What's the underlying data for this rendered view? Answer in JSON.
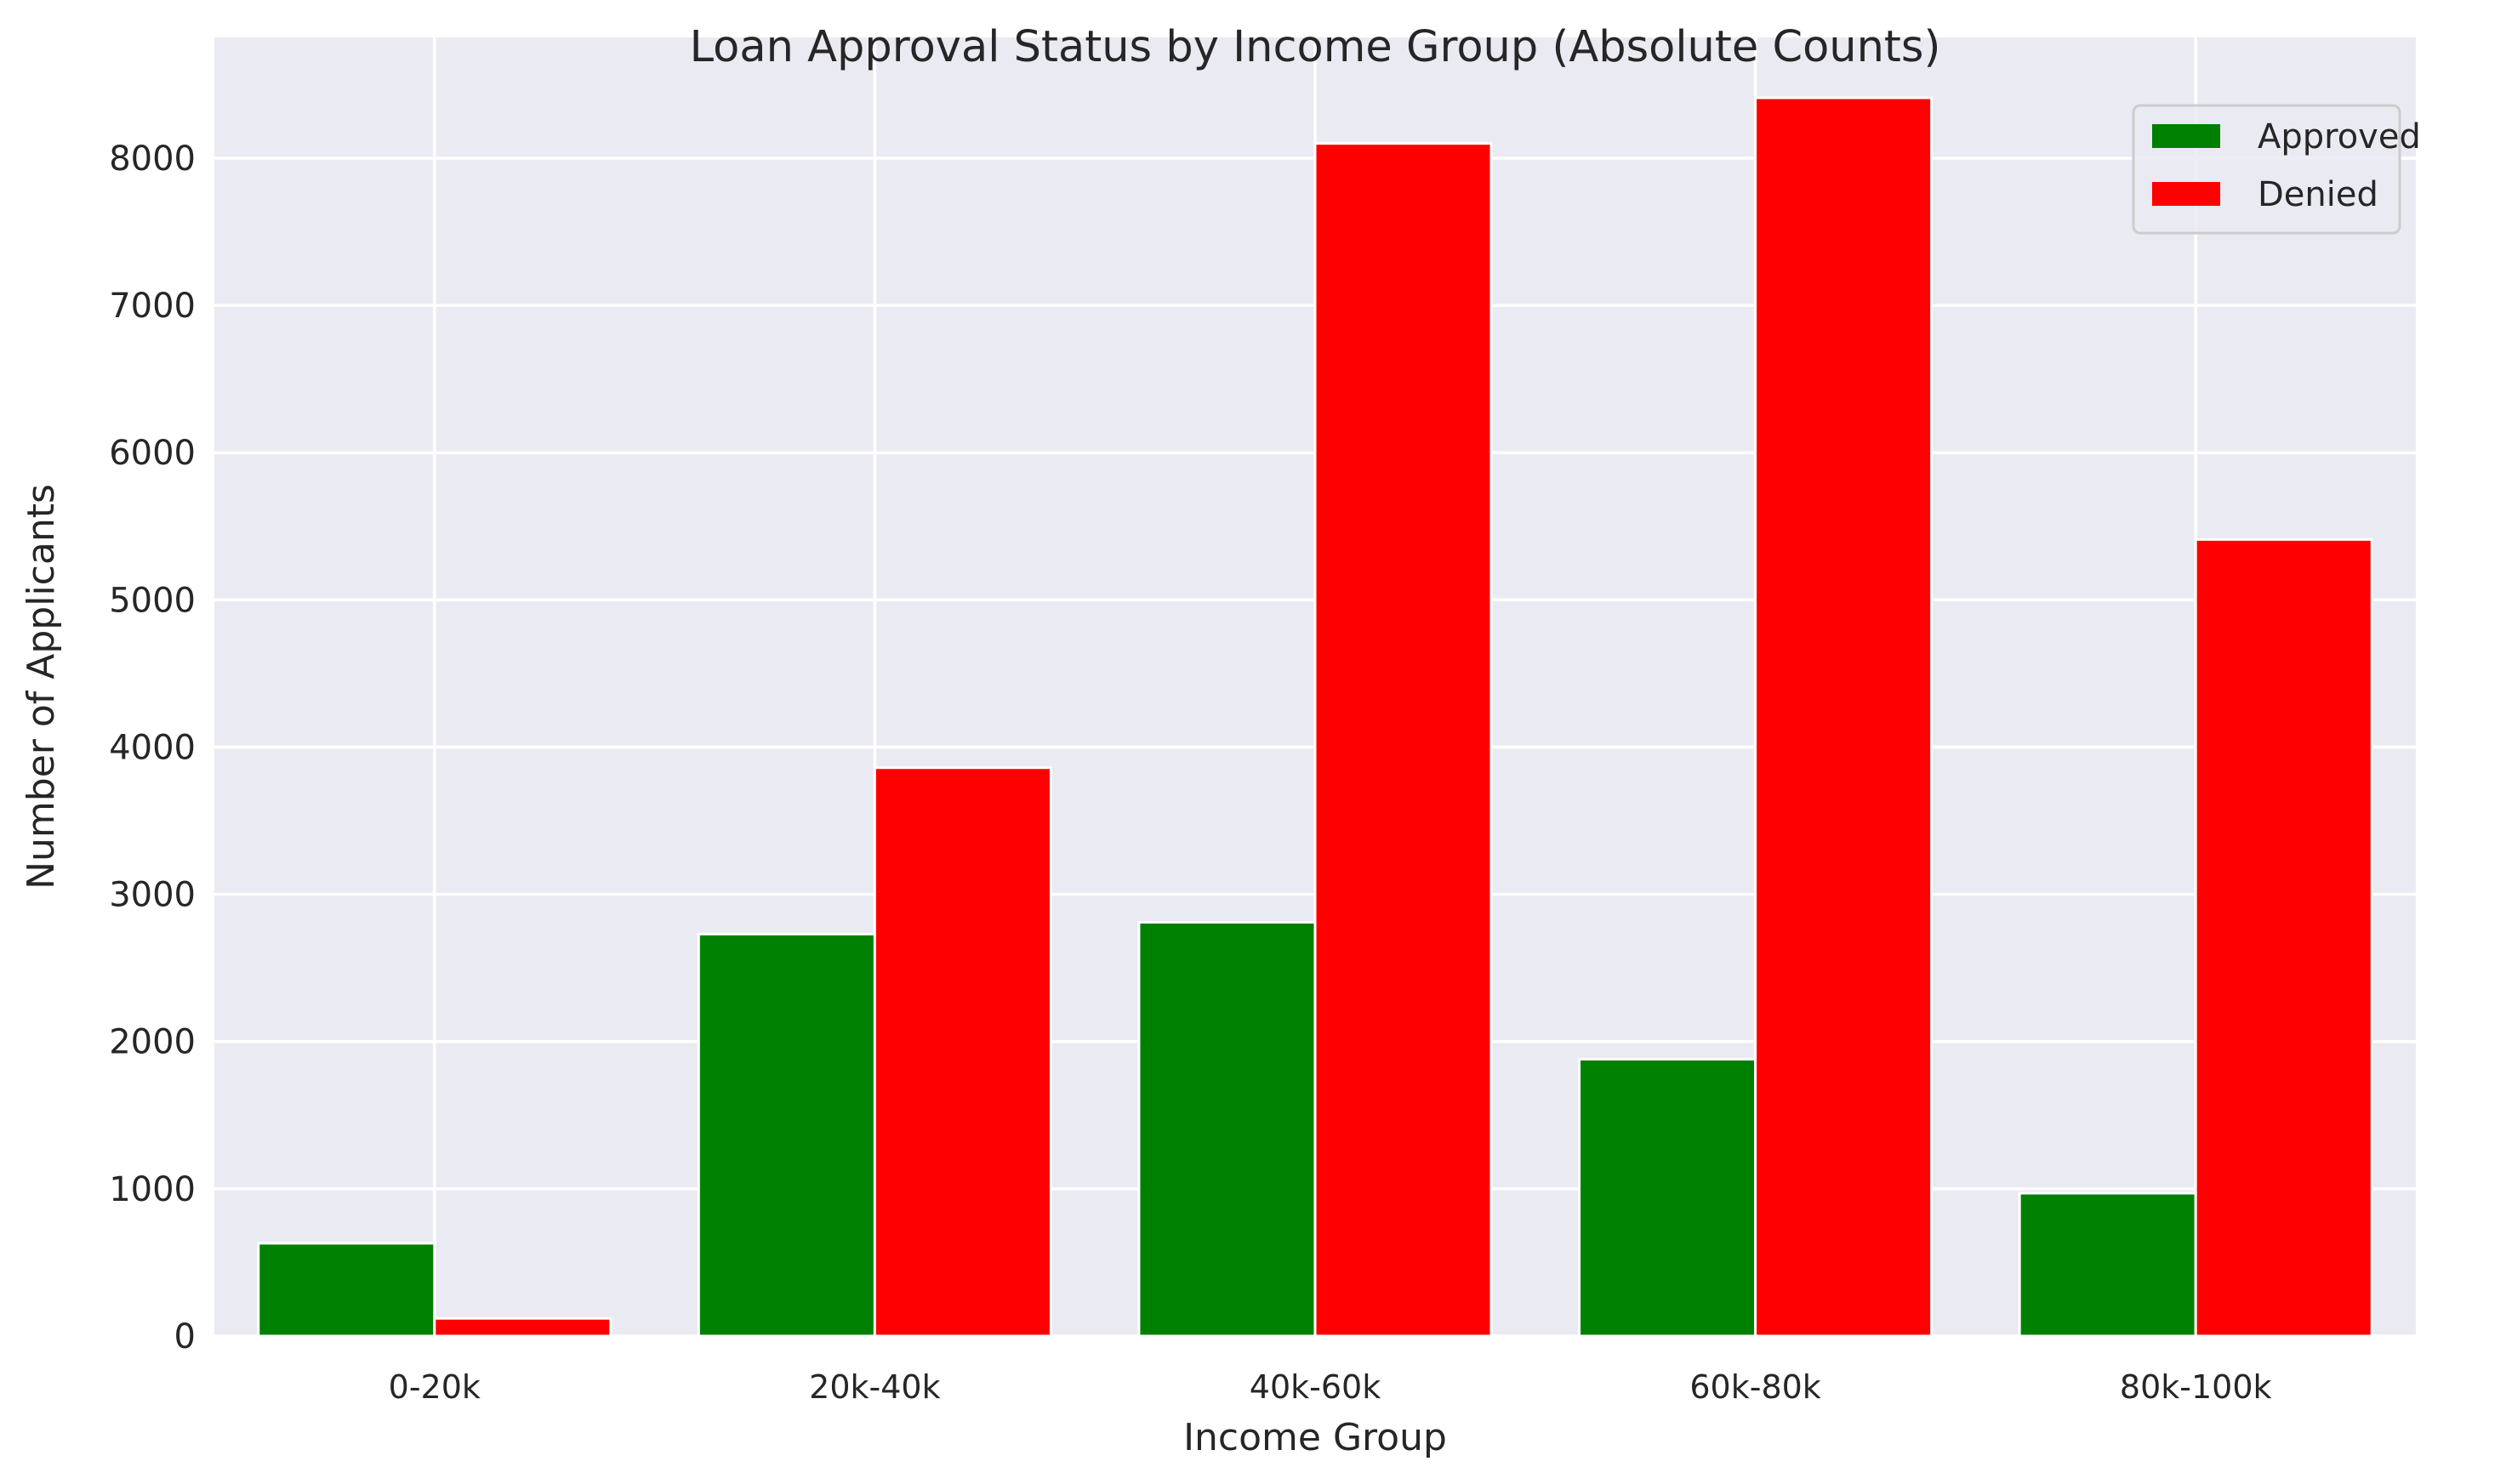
{
  "chart_data": {
    "type": "bar",
    "title": "Loan Approval Status by Income Group (Absolute Counts)",
    "xlabel": "Income Group",
    "ylabel": "Number of Applicants",
    "categories": [
      "0-20k",
      "20k-40k",
      "40k-60k",
      "60k-80k",
      "80k-100k"
    ],
    "series": [
      {
        "name": "Approved",
        "color": "#008000",
        "values": [
          630,
          2730,
          2810,
          1880,
          970
        ]
      },
      {
        "name": "Denied",
        "color": "#ff0000",
        "values": [
          120,
          3860,
          8100,
          8410,
          5410
        ]
      }
    ],
    "ylim": [
      0,
      8820
    ],
    "yticks": [
      0,
      1000,
      2000,
      3000,
      4000,
      5000,
      6000,
      7000,
      8000
    ],
    "grid": true,
    "legend_position": "top-right",
    "background_color": "#eaeaf2",
    "grid_color": "#ffffff"
  }
}
